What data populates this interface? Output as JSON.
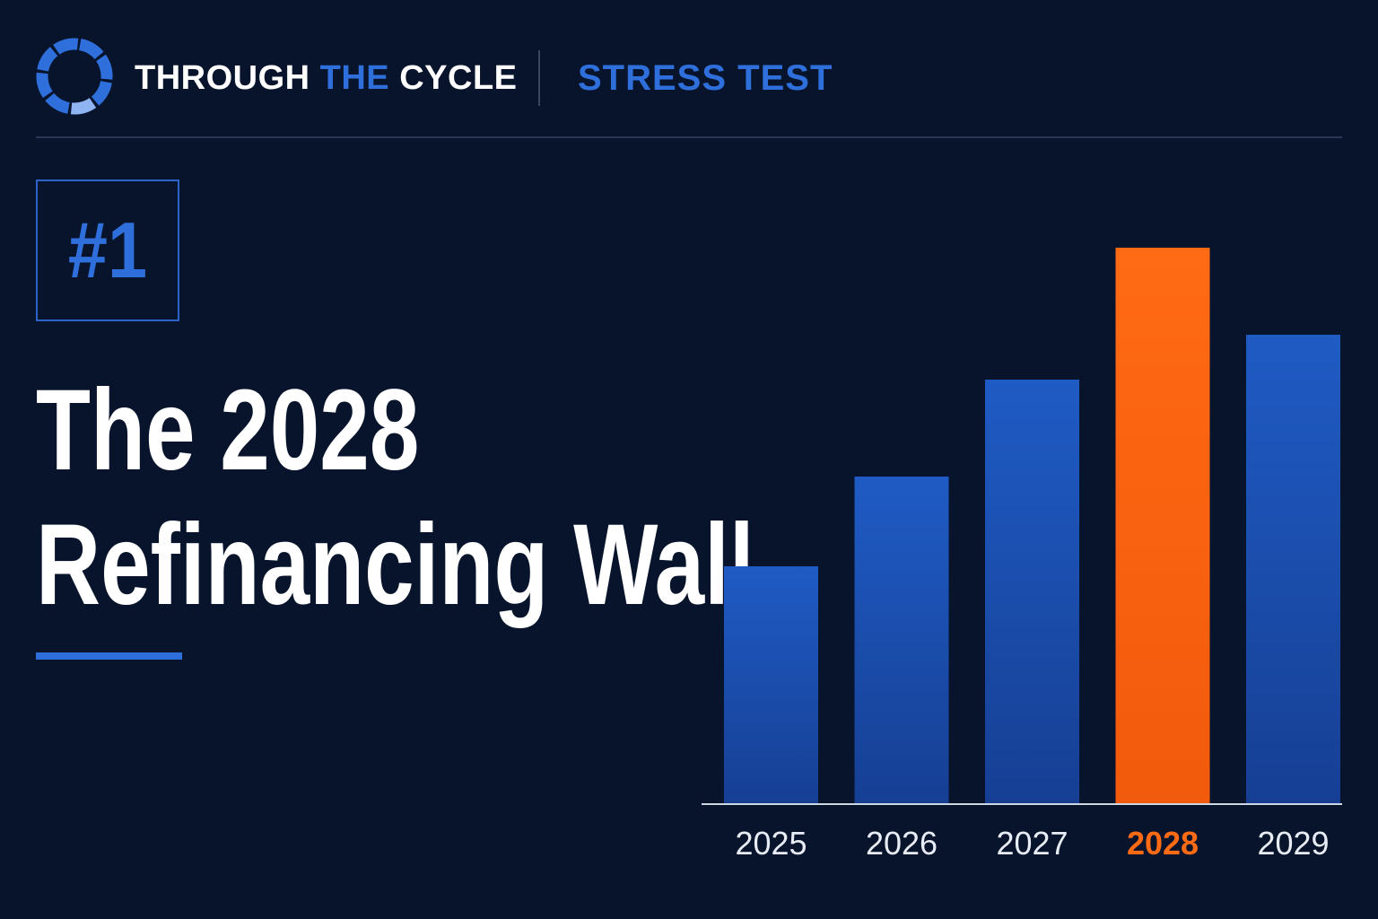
{
  "header": {
    "brand_part1": "THROUGH ",
    "brand_part2": "THE",
    "brand_part3": " CYCLE",
    "section": "STRESS TEST"
  },
  "badge": {
    "label": "#1"
  },
  "headline": {
    "line1": "The 2028",
    "line2": "Refinancing Wall"
  },
  "colors": {
    "background": "#07142b",
    "accent_blue": "#2f6fdc",
    "bar_blue": "#1f5bc4",
    "highlight_orange": "#ff6a14",
    "text_white": "#ffffff"
  },
  "logo": {
    "icon": "segmented-ring-icon"
  },
  "chart_data": {
    "type": "bar",
    "categories": [
      "2025",
      "2026",
      "2027",
      "2028",
      "2029"
    ],
    "values": [
      26.5,
      36.5,
      47.3,
      62,
      52.3
    ],
    "highlight_category": "2028",
    "ylim": [
      0,
      62
    ],
    "grid": false,
    "legend": "none",
    "title": "",
    "xlabel": "",
    "ylabel": ""
  }
}
